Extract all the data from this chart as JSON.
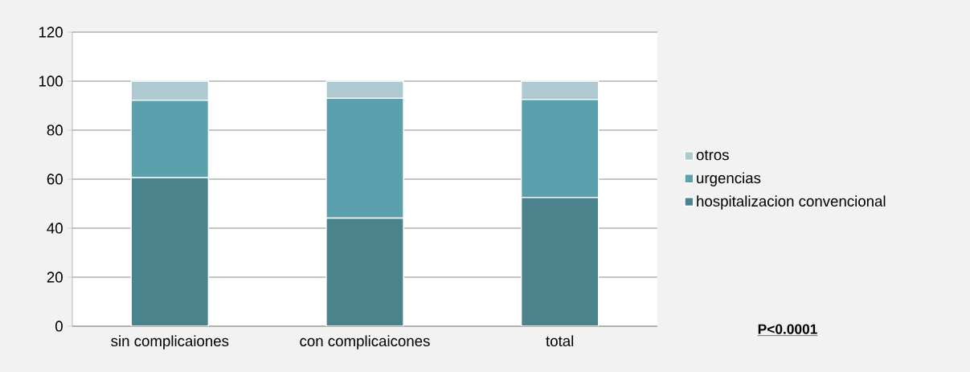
{
  "chart_data": {
    "type": "bar",
    "stacked": true,
    "categories": [
      "sin complicaiones",
      "con complicaicones",
      "total"
    ],
    "series": [
      {
        "name": "hospitalizacion convencional",
        "color": "#4a838c",
        "values": [
          60.6,
          44.1,
          52.5
        ]
      },
      {
        "name": "urgencias",
        "color": "#5aa1ad",
        "values": [
          31.6,
          48.9,
          40.0
        ]
      },
      {
        "name": "otros",
        "color": "#aec9cf",
        "values": [
          7.8,
          7.0,
          7.5
        ]
      }
    ],
    "ylim": [
      0,
      120
    ],
    "yticks": [
      0,
      20,
      40,
      60,
      80,
      100,
      120
    ],
    "grid": "y",
    "legend": "right",
    "annotations": [
      "P<0.0001"
    ]
  }
}
